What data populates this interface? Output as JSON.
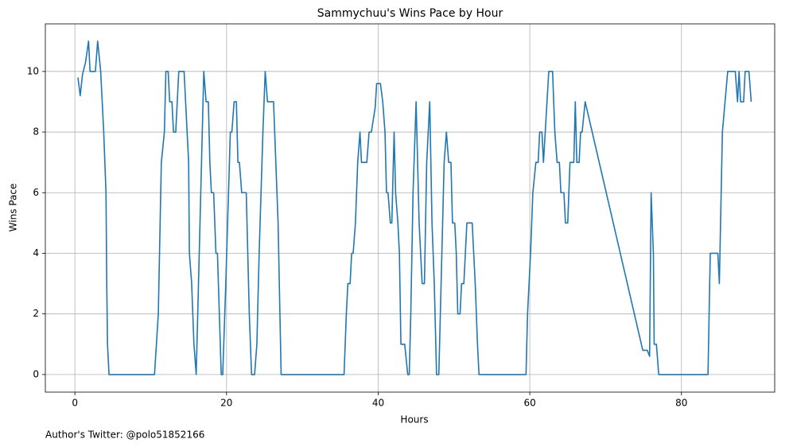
{
  "chart_data": {
    "type": "line",
    "title": "Sammychuu's Wins Pace by Hour",
    "x_label": "Hours",
    "y_label": "Wins Pace",
    "note": "Author's Twitter: @polo51852166",
    "grid": true,
    "xlim": [
      -3.9,
      92.3
    ],
    "ylim": [
      -0.58,
      11.57
    ],
    "xticks": [
      0,
      20,
      40,
      60,
      80
    ],
    "yticks": [
      0,
      2,
      4,
      6,
      8,
      10
    ],
    "x": [
      0.4,
      0.7,
      1.0,
      1.4,
      1.8,
      2.0,
      2.7,
      3.0,
      3.4,
      3.8,
      4.1,
      4.2,
      4.3,
      4.5,
      10.5,
      11.0,
      11.4,
      11.8,
      12.0,
      12.3,
      12.5,
      12.8,
      13.0,
      13.3,
      13.7,
      14.4,
      15.0,
      15.1,
      15.4,
      15.7,
      16.0,
      16.7,
      17.0,
      17.3,
      17.6,
      17.8,
      18.0,
      18.3,
      18.6,
      18.8,
      19.3,
      19.5,
      19.9,
      20.5,
      20.7,
      21.0,
      21.3,
      21.5,
      21.7,
      22.0,
      22.6,
      23.0,
      23.3,
      23.7,
      24.0,
      24.3,
      24.8,
      25.1,
      25.4,
      26.2,
      26.8,
      27.2,
      35.5,
      35.8,
      36.0,
      36.3,
      36.5,
      36.7,
      37.0,
      37.3,
      37.6,
      37.8,
      38.5,
      38.8,
      39.1,
      39.6,
      39.8,
      40.3,
      40.6,
      40.9,
      41.1,
      41.3,
      41.6,
      41.8,
      42.1,
      42.3,
      42.6,
      42.8,
      43.0,
      43.5,
      43.9,
      44.1,
      44.3,
      44.6,
      45.0,
      45.4,
      45.8,
      46.1,
      46.4,
      46.8,
      47.1,
      47.4,
      47.7,
      48.0,
      48.3,
      48.7,
      49.0,
      49.3,
      49.6,
      49.8,
      50.1,
      50.3,
      50.5,
      50.8,
      51.0,
      51.3,
      51.7,
      52.4,
      52.8,
      53.1,
      53.3,
      59.5,
      59.7,
      60.1,
      60.4,
      60.8,
      61.1,
      61.3,
      61.6,
      61.8,
      62.5,
      63.0,
      63.3,
      63.6,
      63.9,
      64.1,
      64.5,
      64.7,
      65.0,
      65.3,
      65.8,
      66.0,
      66.2,
      66.5,
      66.7,
      66.9,
      67.3,
      74.9,
      75.5,
      75.8,
      76.0,
      76.3,
      76.4,
      76.7,
      77.0,
      83.5,
      83.8,
      84.8,
      85.0,
      85.4,
      86.1,
      87.1,
      87.4,
      87.6,
      87.8,
      88.2,
      88.4,
      88.9,
      89.2
    ],
    "series": [
      {
        "name": "Wins Pace",
        "color": "#1f77b4",
        "values": [
          9.8,
          9.2,
          9.9,
          10.3,
          11,
          10,
          10,
          11,
          10,
          8,
          6,
          3,
          1,
          0,
          0,
          2,
          7,
          8,
          10,
          10,
          9,
          9,
          8,
          8,
          10,
          10,
          7,
          4,
          3,
          1,
          0,
          7,
          10,
          9,
          9,
          7,
          6,
          6,
          4,
          4,
          0,
          0,
          3,
          8,
          8,
          9,
          9,
          7,
          7,
          6,
          6,
          2,
          0,
          0,
          1,
          4,
          8,
          10,
          9,
          9,
          5,
          0,
          0,
          2,
          3,
          3,
          4,
          4,
          5,
          7,
          8,
          7,
          7,
          8,
          8,
          8.8,
          9.6,
          9.6,
          9,
          8,
          6,
          6,
          5,
          5,
          8,
          6,
          5,
          4,
          1,
          1,
          0,
          0,
          2,
          6,
          9,
          5,
          3,
          3,
          7,
          9,
          5,
          3,
          0,
          0,
          3,
          7,
          8,
          7,
          7,
          5,
          5,
          4,
          2,
          2,
          3,
          3,
          5,
          5,
          3,
          1,
          0,
          0,
          2,
          4,
          6,
          7,
          7,
          8,
          8,
          7,
          10,
          10,
          8,
          7,
          7,
          6,
          6,
          5,
          5,
          7,
          7,
          9,
          7,
          7,
          8,
          8,
          9,
          0.8,
          0.8,
          0.6,
          6,
          4,
          1,
          1,
          0,
          0,
          4,
          4,
          3,
          8,
          10,
          10,
          9,
          10,
          9,
          9,
          10,
          10,
          9
        ]
      }
    ]
  }
}
